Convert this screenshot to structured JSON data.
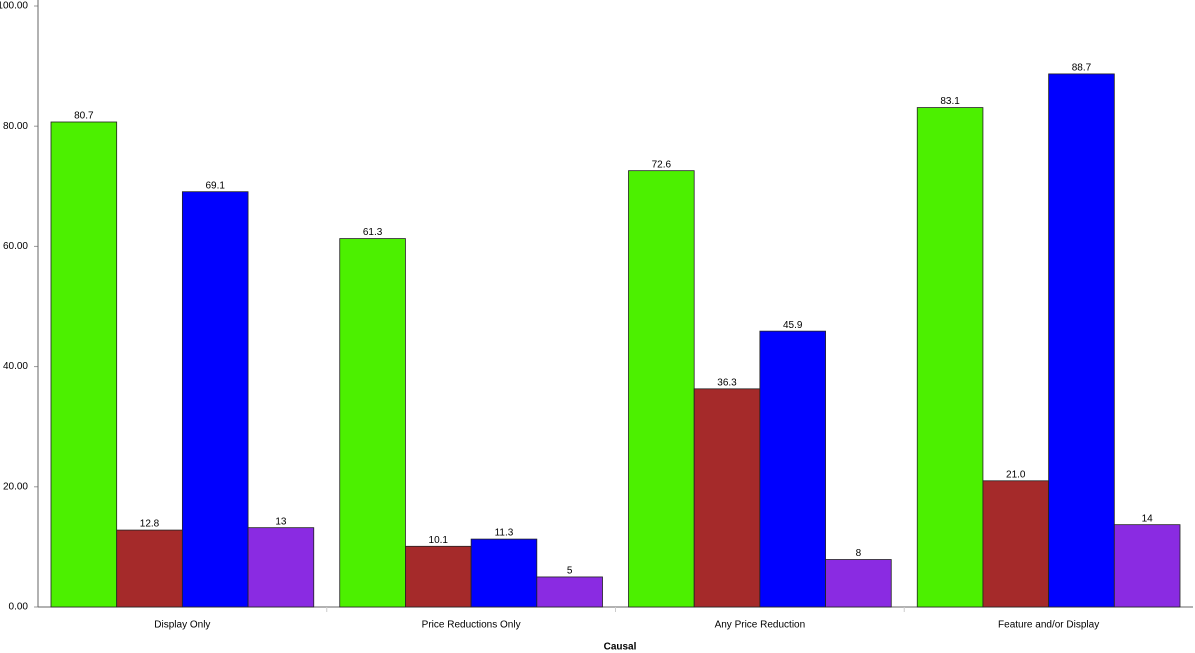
{
  "chart_data": {
    "type": "bar",
    "x_label": "Causal",
    "categories": [
      "Display Only",
      "Price Reductions Only",
      "Any Price Reduction",
      "Feature and/or Display"
    ],
    "series": [
      {
        "color": "#4cf000",
        "values": [
          80.7,
          61.3,
          72.6,
          83.1
        ]
      },
      {
        "color": "#a52a2a",
        "values": [
          12.8,
          10.1,
          36.3,
          21.0
        ],
        "value_labels": [
          "12.8",
          "10.1",
          "36.3",
          "21.0"
        ]
      },
      {
        "color": "#0000ff",
        "values": [
          69.1,
          11.3,
          45.9,
          88.7
        ]
      },
      {
        "color": "#8a2be2",
        "values": [
          13.2,
          5,
          7.9,
          13.7
        ],
        "value_labels": [
          "13",
          "5",
          "8",
          "14"
        ]
      }
    ],
    "ylim": [
      0,
      100
    ],
    "yticks": [
      {
        "value": 0,
        "label": "0.00"
      },
      {
        "value": 20,
        "label": "20.00"
      },
      {
        "value": 40,
        "label": "40.00"
      },
      {
        "value": 60,
        "label": "60.00"
      },
      {
        "value": 80,
        "label": "80.00"
      },
      {
        "value": 100,
        "label": "100.00"
      }
    ]
  }
}
